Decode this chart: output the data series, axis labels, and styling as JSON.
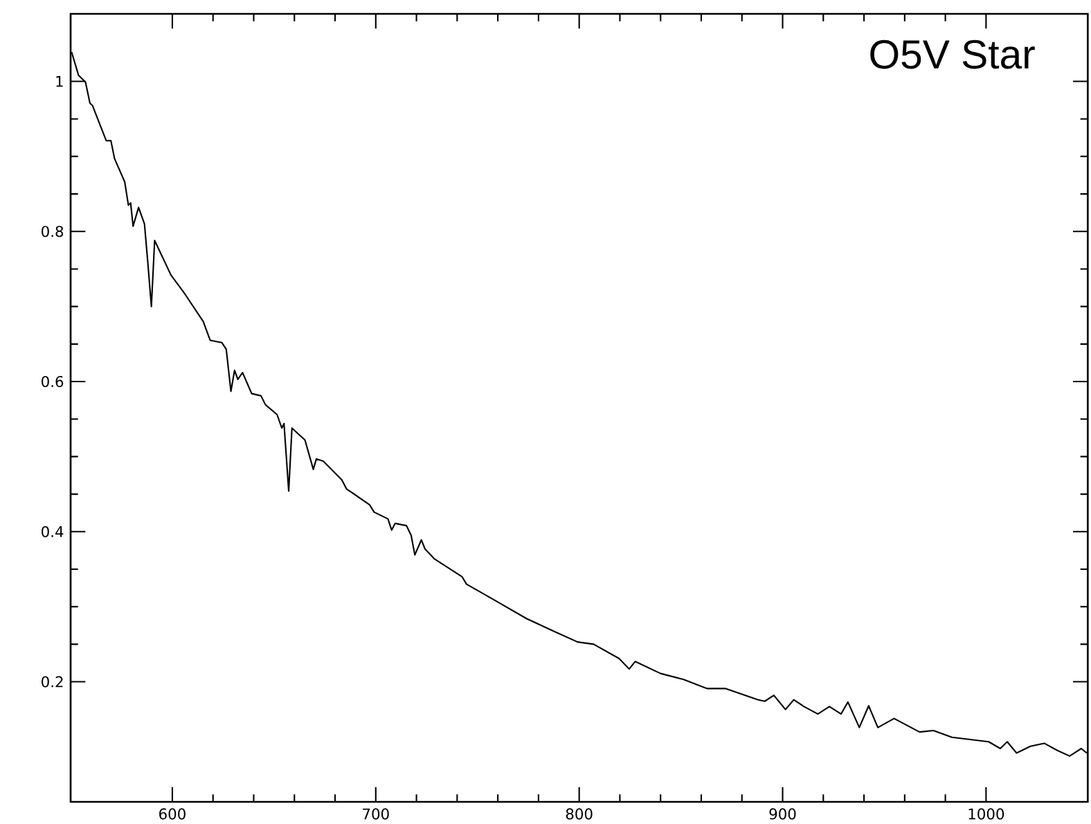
{
  "chart_data": {
    "type": "line",
    "annotations": [
      "O5V Star"
    ],
    "xlim": [
      550,
      1050
    ],
    "ylim": [
      0.04,
      1.09
    ],
    "xticks": [
      600,
      700,
      800,
      900,
      1000
    ],
    "yticks": [
      0.2,
      0.4,
      0.6,
      0.8,
      1
    ],
    "series": [
      {
        "color": "#000000",
        "x": [
          550.5,
          553.9,
          557.3,
          559.5,
          560.7,
          567.5,
          569.8,
          571.6,
          576.6,
          578.4,
          579.5,
          580.7,
          583.4,
          586.3,
          587.9,
          589.7,
          591.3,
          599.3,
          606.1,
          615.2,
          618.6,
          624.3,
          626.5,
          628.8,
          630.6,
          632.2,
          634.5,
          639.0,
          643.6,
          645.8,
          651.5,
          653.8,
          654.9,
          657.2,
          658.8,
          665.2,
          669.3,
          670.8,
          674.2,
          683.3,
          685.6,
          696.9,
          699.2,
          706.0,
          707.8,
          709.5,
          715.1,
          717.4,
          719.2,
          722.4,
          724.2,
          728.7,
          742.4,
          744.6,
          758.2,
          774.2,
          787.8,
          799.2,
          807.1,
          819.6,
          824.6,
          827.5,
          840.0,
          851.3,
          862.8,
          871.8,
          887.8,
          891.2,
          895.7,
          901.4,
          905.5,
          910.5,
          917.3,
          923.0,
          928.7,
          932.1,
          937.7,
          942.3,
          946.8,
          954.8,
          967.3,
          974.1,
          983.2,
          992.3,
          1001.3,
          1007.0,
          1010.4,
          1015.0,
          1021.8,
          1028.6,
          1035.4,
          1041.1,
          1046.8,
          1049.5
        ],
        "values": [
          1.039,
          1.008,
          0.999,
          0.971,
          0.968,
          0.921,
          0.921,
          0.897,
          0.866,
          0.835,
          0.838,
          0.807,
          0.832,
          0.81,
          0.76,
          0.7,
          0.788,
          0.742,
          0.717,
          0.68,
          0.655,
          0.652,
          0.643,
          0.587,
          0.615,
          0.603,
          0.612,
          0.584,
          0.581,
          0.569,
          0.556,
          0.538,
          0.544,
          0.454,
          0.538,
          0.522,
          0.483,
          0.497,
          0.494,
          0.469,
          0.457,
          0.436,
          0.426,
          0.417,
          0.402,
          0.411,
          0.408,
          0.395,
          0.369,
          0.389,
          0.377,
          0.364,
          0.34,
          0.33,
          0.309,
          0.284,
          0.267,
          0.253,
          0.25,
          0.231,
          0.217,
          0.227,
          0.211,
          0.203,
          0.191,
          0.191,
          0.176,
          0.174,
          0.182,
          0.163,
          0.176,
          0.167,
          0.157,
          0.167,
          0.157,
          0.173,
          0.139,
          0.168,
          0.139,
          0.151,
          0.133,
          0.135,
          0.126,
          0.123,
          0.12,
          0.111,
          0.12,
          0.105,
          0.114,
          0.118,
          0.108,
          0.101,
          0.111,
          0.105
        ]
      }
    ]
  }
}
